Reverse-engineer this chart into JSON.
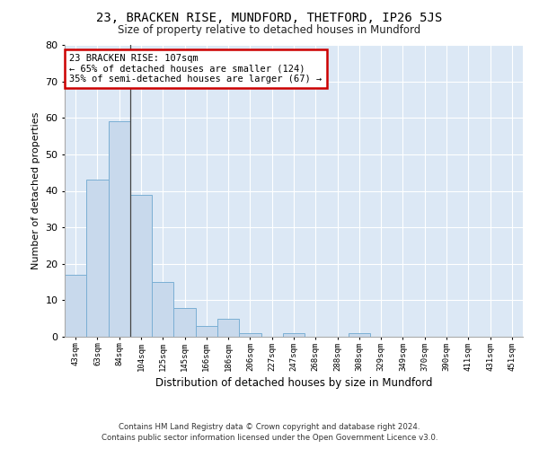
{
  "title": "23, BRACKEN RISE, MUNDFORD, THETFORD, IP26 5JS",
  "subtitle": "Size of property relative to detached houses in Mundford",
  "xlabel": "Distribution of detached houses by size in Mundford",
  "ylabel": "Number of detached properties",
  "bar_color": "#c8d9ec",
  "bar_edge_color": "#7bafd4",
  "background_color": "#dce8f5",
  "categories": [
    "43sqm",
    "63sqm",
    "84sqm",
    "104sqm",
    "125sqm",
    "145sqm",
    "166sqm",
    "186sqm",
    "206sqm",
    "227sqm",
    "247sqm",
    "268sqm",
    "288sqm",
    "308sqm",
    "329sqm",
    "349sqm",
    "370sqm",
    "390sqm",
    "411sqm",
    "431sqm",
    "451sqm"
  ],
  "values": [
    17,
    43,
    59,
    39,
    15,
    8,
    3,
    5,
    1,
    0,
    1,
    0,
    0,
    1,
    0,
    0,
    0,
    0,
    0,
    0,
    0
  ],
  "ylim": [
    0,
    80
  ],
  "yticks": [
    0,
    10,
    20,
    30,
    40,
    50,
    60,
    70,
    80
  ],
  "annotation_text": "23 BRACKEN RISE: 107sqm\n← 65% of detached houses are smaller (124)\n35% of semi-detached houses are larger (67) →",
  "annotation_box_color": "#ffffff",
  "annotation_box_edge_color": "#cc0000",
  "vline_x_index": 2.5,
  "footnote1": "Contains HM Land Registry data © Crown copyright and database right 2024.",
  "footnote2": "Contains public sector information licensed under the Open Government Licence v3.0."
}
